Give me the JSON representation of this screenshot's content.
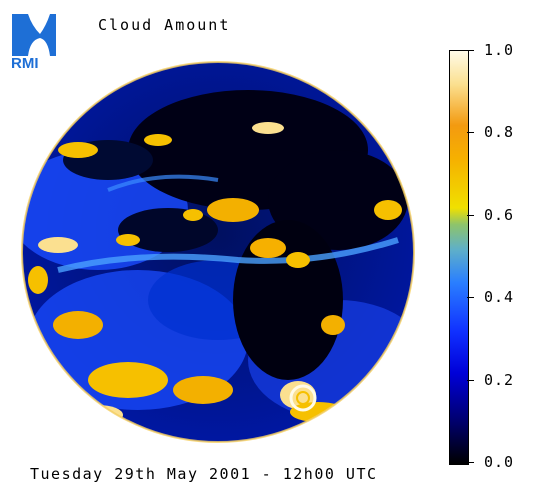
{
  "logo": {
    "text": "RMI",
    "color": "#1e6fd6"
  },
  "title": "Cloud Amount",
  "colorbar": {
    "ticks": [
      "1.0",
      "0.8",
      "0.6",
      "0.4",
      "0.2",
      "0.0"
    ],
    "range": [
      0.0,
      1.0
    ]
  },
  "footer": "Tuesday 29th May 2001 - 12h00 UTC"
}
